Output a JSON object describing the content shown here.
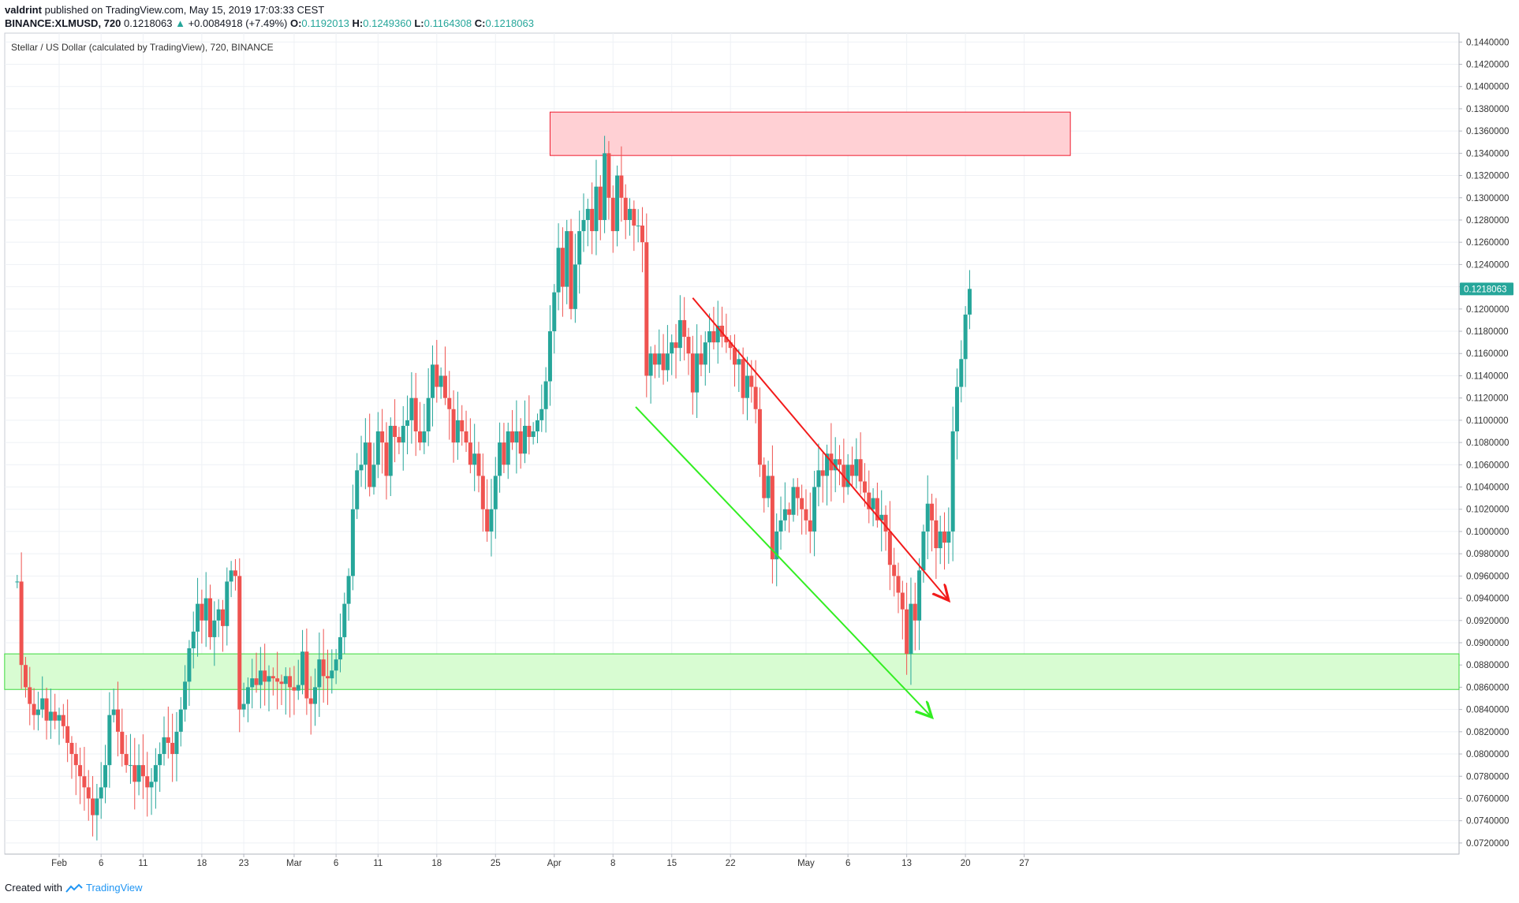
{
  "header": {
    "author": "valdrint",
    "published_text": "published on TradingView.com, May 15, 2019 17:03:33 CEST",
    "symbol": "BINANCE:XLMUSD, 720",
    "last": "0.1218063",
    "change_arrow": "▲",
    "change": "+0.0084918 (+7.49%)",
    "o_label": "O:",
    "o_value": "0.1192013",
    "h_label": "H:",
    "h_value": "0.1249360",
    "l_label": "L:",
    "l_value": "0.1164308",
    "c_label": "C:",
    "c_value": "0.1218063"
  },
  "footer": {
    "created_with": "Created with",
    "brand": "TradingView",
    "logo_icon": "tradingview-logo-icon"
  },
  "colors": {
    "up": "#26a69a",
    "down": "#ef5350",
    "grid": "#eef1f5",
    "resistance_fill": "#ffd0d4",
    "resistance_stroke": "#ef1a2d",
    "support_fill": "#d8fcd2",
    "support_stroke": "#3cd83c",
    "red_line": "#f21b1b",
    "green_line": "#33ee22",
    "price_tag": "#26a69a"
  },
  "chart_data": {
    "type": "candlestick",
    "title": "Stellar / US Dollar (calculated by TradingView), 720, BINANCE",
    "ylim": [
      0.071,
      0.1448
    ],
    "y_ticks": [
      "0.1440000",
      "0.1420000",
      "0.1400000",
      "0.1380000",
      "0.1360000",
      "0.1340000",
      "0.1320000",
      "0.1300000",
      "0.1280000",
      "0.1260000",
      "0.1240000",
      "0.1220000",
      "0.1200000",
      "0.1180000",
      "0.1160000",
      "0.1140000",
      "0.1120000",
      "0.1100000",
      "0.1080000",
      "0.1060000",
      "0.1040000",
      "0.1020000",
      "0.1000000",
      "0.0980000",
      "0.0960000",
      "0.0940000",
      "0.0920000",
      "0.0900000",
      "0.0880000",
      "0.0860000",
      "0.0840000",
      "0.0820000",
      "0.0800000",
      "0.0780000",
      "0.0760000",
      "0.0740000",
      "0.0720000"
    ],
    "x_ticks": [
      {
        "label": "Feb",
        "day": 4
      },
      {
        "label": "6",
        "day": 9
      },
      {
        "label": "11",
        "day": 14
      },
      {
        "label": "18",
        "day": 21
      },
      {
        "label": "23",
        "day": 26
      },
      {
        "label": "Mar",
        "day": 32
      },
      {
        "label": "6",
        "day": 37
      },
      {
        "label": "11",
        "day": 42
      },
      {
        "label": "18",
        "day": 49
      },
      {
        "label": "25",
        "day": 56
      },
      {
        "label": "Apr",
        "day": 63
      },
      {
        "label": "8",
        "day": 70
      },
      {
        "label": "15",
        "day": 77
      },
      {
        "label": "22",
        "day": 84
      },
      {
        "label": "May",
        "day": 93
      },
      {
        "label": "6",
        "day": 98
      },
      {
        "label": "13",
        "day": 105
      },
      {
        "label": "20",
        "day": 112
      },
      {
        "label": "27",
        "day": 119
      }
    ],
    "current_price_label": "0.1218063",
    "current_price": 0.1218063,
    "candle_interval_hours": 12,
    "start_date": "2019-01-29",
    "closes": [
      0.0955,
      0.088,
      0.086,
      0.0845,
      0.0835,
      0.084,
      0.085,
      0.083,
      0.0838,
      0.083,
      0.0835,
      0.0825,
      0.081,
      0.08,
      0.079,
      0.078,
      0.077,
      0.076,
      0.0745,
      0.076,
      0.077,
      0.079,
      0.0835,
      0.084,
      0.082,
      0.08,
      0.079,
      0.079,
      0.0775,
      0.079,
      0.078,
      0.077,
      0.0775,
      0.079,
      0.08,
      0.0815,
      0.081,
      0.08,
      0.082,
      0.084,
      0.0865,
      0.0895,
      0.091,
      0.0935,
      0.092,
      0.094,
      0.0905,
      0.092,
      0.093,
      0.0915,
      0.0955,
      0.0965,
      0.096,
      0.084,
      0.0845,
      0.086,
      0.0868,
      0.0862,
      0.0875,
      0.0865,
      0.087,
      0.0868,
      0.0865,
      0.0863,
      0.087,
      0.086,
      0.0857,
      0.0862,
      0.0892,
      0.085,
      0.0845,
      0.086,
      0.0885,
      0.087,
      0.0868,
      0.0875,
      0.0885,
      0.0905,
      0.0935,
      0.096,
      0.102,
      0.1055,
      0.106,
      0.108,
      0.104,
      0.106,
      0.109,
      0.108,
      0.105,
      0.1095,
      0.1085,
      0.108,
      0.1095,
      0.11,
      0.112,
      0.109,
      0.108,
      0.109,
      0.112,
      0.115,
      0.113,
      0.114,
      0.112,
      0.111,
      0.108,
      0.11,
      0.109,
      0.108,
      0.106,
      0.107,
      0.105,
      0.102,
      0.1,
      0.102,
      0.105,
      0.108,
      0.106,
      0.109,
      0.108,
      0.109,
      0.107,
      0.1095,
      0.1085,
      0.109,
      0.11,
      0.111,
      0.1135,
      0.118,
      0.1215,
      0.1255,
      0.122,
      0.127,
      0.12,
      0.124,
      0.127,
      0.128,
      0.129,
      0.127,
      0.131,
      0.128,
      0.134,
      0.13,
      0.127,
      0.132,
      0.13,
      0.128,
      0.129,
      0.1275,
      0.1275,
      0.126,
      0.114,
      0.116,
      0.115,
      0.116,
      0.1145,
      0.116,
      0.117,
      0.1165,
      0.119,
      0.1175,
      0.116,
      0.1125,
      0.116,
      0.115,
      0.117,
      0.118,
      0.117,
      0.1185,
      0.1175,
      0.117,
      0.1165,
      0.115,
      0.1155,
      0.112,
      0.114,
      0.113,
      0.111,
      0.106,
      0.103,
      0.105,
      0.0975,
      0.1,
      0.101,
      0.102,
      0.1015,
      0.104,
      0.103,
      0.102,
      0.101,
      0.1,
      0.104,
      0.1055,
      0.105,
      0.107,
      0.1055,
      0.1065,
      0.106,
      0.104,
      0.106,
      0.105,
      0.1065,
      0.1045,
      0.1035,
      0.102,
      0.103,
      0.101,
      0.1015,
      0.1,
      0.097,
      0.096,
      0.0945,
      0.093,
      0.089,
      0.0935,
      0.092,
      0.0965,
      0.1,
      0.1025,
      0.101,
      0.0985,
      0.1,
      0.099,
      0.1,
      0.109,
      0.113,
      0.1155,
      0.1195,
      0.1218063
    ],
    "resistance_zone": {
      "y_low": 0.1338,
      "y_high": 0.1377,
      "day_start": 62.5,
      "day_end": 124.5
    },
    "support_zone": {
      "y_low": 0.0858,
      "y_high": 0.089,
      "day_start": -2.5
    },
    "trend_lines": [
      {
        "name": "red-trendline",
        "points": [
          [
            79.5,
            0.121
          ],
          [
            110.0,
            0.0938
          ]
        ]
      },
      {
        "name": "green-trendline",
        "points": [
          [
            72.7,
            0.1112
          ],
          [
            108.0,
            0.0833
          ]
        ]
      }
    ]
  }
}
